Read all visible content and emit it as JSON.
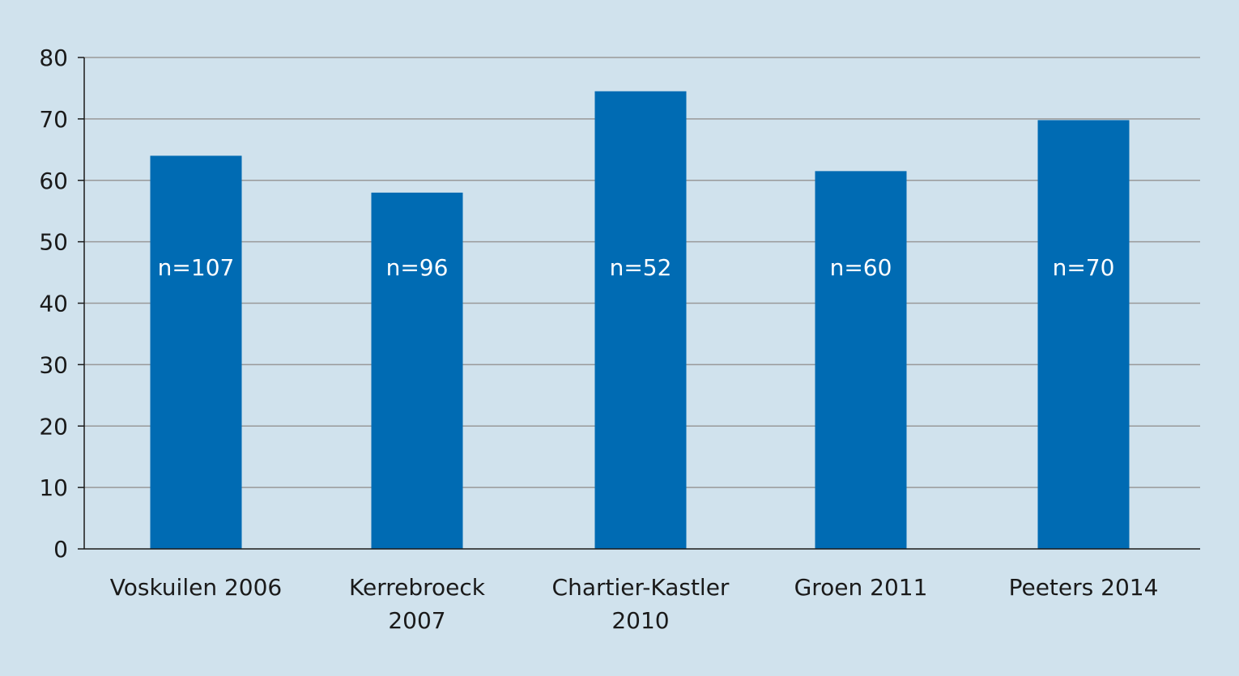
{
  "chart_data": {
    "type": "bar",
    "categories": [
      [
        "Voskuilen 2006"
      ],
      [
        "Kerrebroeck",
        "2007"
      ],
      [
        "Chartier-Kastler",
        "2010"
      ],
      [
        "Groen 2011"
      ],
      [
        "Peeters 2014"
      ]
    ],
    "values": [
      64,
      58,
      74.5,
      61.5,
      69.8
    ],
    "data_labels": [
      "n=107",
      "n=96",
      "n=52",
      "n=60",
      "n=70"
    ],
    "yticks": [
      0,
      10,
      20,
      30,
      40,
      50,
      60,
      70,
      80
    ],
    "ylim": [
      0,
      80
    ],
    "grid": true,
    "legend": false,
    "colors": {
      "background": "#d0e2ed",
      "bar": "#006bb3",
      "grid": "#999999",
      "axis": "#1a1a1a",
      "data_label": "#ffffff"
    }
  }
}
